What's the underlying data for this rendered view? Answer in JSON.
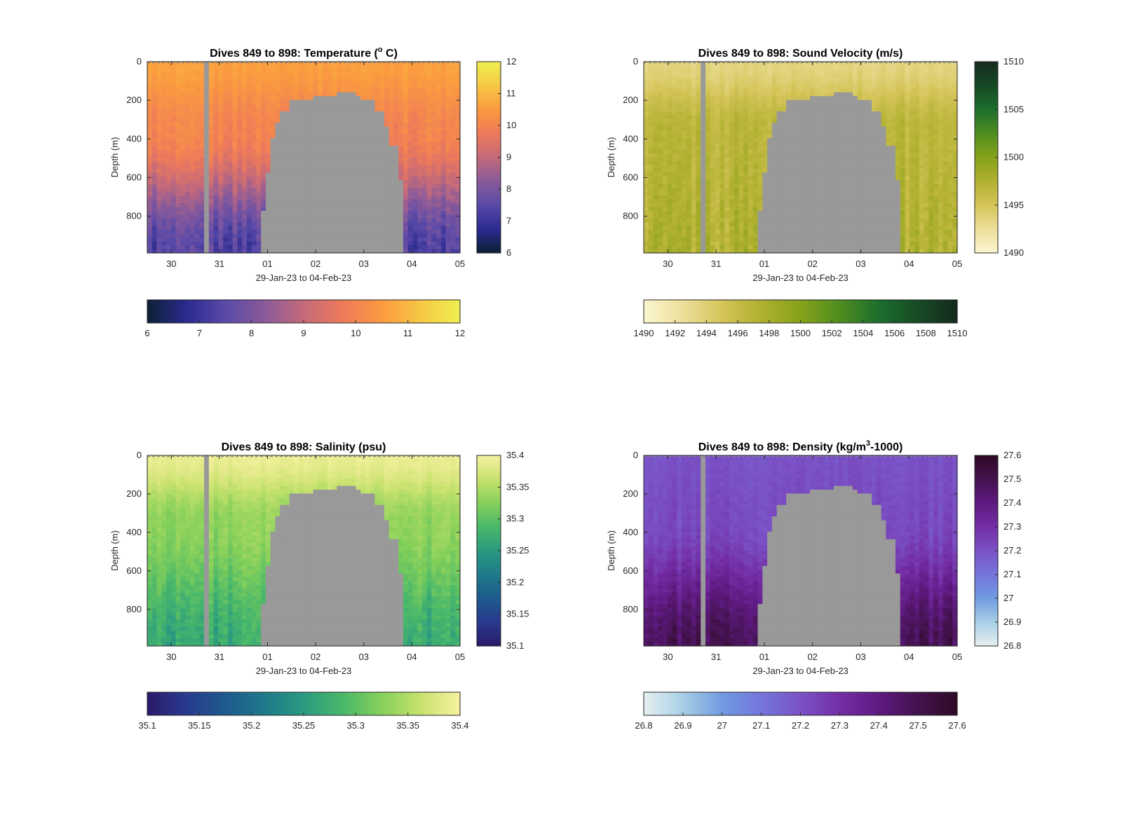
{
  "page": {
    "background": "#ffffff"
  },
  "chart_data": [
    {
      "type": "heatmap",
      "title": "Dives 849 to 898: Temperature (o C)",
      "title_parts": [
        "Dives 849 to 898: Temperature (",
        "o",
        " C)"
      ],
      "xlabel": "29-Jan-23 to 04-Feb-23",
      "ylabel": "Depth (m)",
      "x_ticks": [
        "30",
        "31",
        "01",
        "02",
        "03",
        "04",
        "05"
      ],
      "y_ticks": [
        "0",
        "200",
        "400",
        "600",
        "800"
      ],
      "ylim": [
        0,
        990
      ],
      "xlim_days": [
        -0.5,
        6.0
      ],
      "colormap": [
        "#0d2035",
        "#2a2a8f",
        "#5a4aa8",
        "#8a5a9a",
        "#c46a7a",
        "#ee7a5a",
        "#fb9a40",
        "#f7c844",
        "#eef050"
      ],
      "vertical_cbar_ticks": [
        "12",
        "11",
        "10",
        "9",
        "8",
        "7",
        "6"
      ],
      "horizontal_cbar_ticks": [
        "6",
        "7",
        "8",
        "9",
        "10",
        "11",
        "12"
      ],
      "clim": [
        6,
        12
      ],
      "vlim": [
        6,
        12
      ],
      "profile": {
        "surface": 10.6,
        "mid": 10.0,
        "deep": 7.3
      },
      "gap_day": 0.75,
      "dome": "temp"
    },
    {
      "type": "heatmap",
      "title": "Dives 849 to 898: Sound Velocity (m/s)",
      "title_parts": [
        "Dives 849 to 898: Sound Velocity (m/s)"
      ],
      "xlabel": "29-Jan-23 to 04-Feb-23",
      "ylabel": "Depth (m)",
      "x_ticks": [
        "30",
        "31",
        "01",
        "02",
        "03",
        "04",
        "05"
      ],
      "y_ticks": [
        "0",
        "200",
        "400",
        "600",
        "800"
      ],
      "ylim": [
        0,
        990
      ],
      "xlim_days": [
        -0.5,
        6.0
      ],
      "colormap": [
        "#fbf6cf",
        "#ecdf9a",
        "#d4c458",
        "#b0b030",
        "#86a21a",
        "#4f8d1e",
        "#1d6e2e",
        "#164a25",
        "#152a1c"
      ],
      "vertical_cbar_ticks": [
        "1510",
        "1505",
        "1500",
        "1495",
        "1490"
      ],
      "horizontal_cbar_ticks": [
        "1490",
        "1492",
        "1494",
        "1496",
        "1498",
        "1500",
        "1502",
        "1504",
        "1506",
        "1508",
        "1510"
      ],
      "clim": [
        1490,
        1510
      ],
      "vlim": [
        1490,
        1510
      ],
      "profile": {
        "surface": 1493.5,
        "mid": 1496.8,
        "deep": 1497.5
      },
      "gap_day": 0.75,
      "dome": "sv"
    },
    {
      "type": "heatmap",
      "title": "Dives 849 to 898: Salinity (psu)",
      "title_parts": [
        "Dives 849 to 898: Salinity (psu)"
      ],
      "xlabel": "29-Jan-23 to 04-Feb-23",
      "ylabel": "Depth (m)",
      "x_ticks": [
        "30",
        "31",
        "01",
        "02",
        "03",
        "04",
        "05"
      ],
      "y_ticks": [
        "0",
        "200",
        "400",
        "600",
        "800"
      ],
      "ylim": [
        0,
        990
      ],
      "xlim_days": [
        -0.5,
        6.0
      ],
      "colormap": [
        "#2a1a6a",
        "#283a8e",
        "#1e5a8e",
        "#1f7a8a",
        "#2a9a80",
        "#4ab86a",
        "#86d05a",
        "#c8e26e",
        "#f7f0a0"
      ],
      "vertical_cbar_ticks": [
        "35.4",
        "35.35",
        "35.3",
        "35.25",
        "35.2",
        "35.15",
        "35.1"
      ],
      "horizontal_cbar_ticks": [
        "35.1",
        "35.15",
        "35.2",
        "35.25",
        "35.3",
        "35.35",
        "35.4"
      ],
      "clim": [
        35.1,
        35.4
      ],
      "vlim": [
        35.1,
        35.4
      ],
      "profile": {
        "surface": 35.39,
        "mid": 35.33,
        "deep": 35.27
      },
      "gap_day": 0.75,
      "dome": "sal"
    },
    {
      "type": "heatmap",
      "title": "Dives 849 to 898: Density (kg/m3-1000)",
      "title_parts": [
        "Dives 849 to 898: Density (kg/m",
        "3",
        "-1000)"
      ],
      "xlabel": "29-Jan-23 to 04-Feb-23",
      "ylabel": "Depth (m)",
      "x_ticks": [
        "30",
        "31",
        "01",
        "02",
        "03",
        "04",
        "05"
      ],
      "y_ticks": [
        "0",
        "200",
        "400",
        "600",
        "800"
      ],
      "ylim": [
        0,
        990
      ],
      "xlim_days": [
        -0.5,
        6.0
      ],
      "colormap": [
        "#e6f0f0",
        "#a8cfe6",
        "#6f9be0",
        "#7575dc",
        "#7a52c6",
        "#742ea6",
        "#5e1a80",
        "#44124e",
        "#2e0a24"
      ],
      "vertical_cbar_ticks": [
        "27.6",
        "27.5",
        "27.4",
        "27.3",
        "27.2",
        "27.1",
        "27",
        "26.9",
        "26.8"
      ],
      "horizontal_cbar_ticks": [
        "26.8",
        "26.9",
        "27",
        "27.1",
        "27.2",
        "27.3",
        "27.4",
        "27.5",
        "27.6"
      ],
      "clim": [
        26.8,
        27.6
      ],
      "vlim": [
        26.8,
        27.6
      ],
      "profile": {
        "surface": 27.2,
        "mid": 27.22,
        "deep": 27.48
      },
      "gap_day": 0.75,
      "dome": "den"
    }
  ],
  "colors": {
    "missing": "#999999",
    "axis": "#262626"
  }
}
